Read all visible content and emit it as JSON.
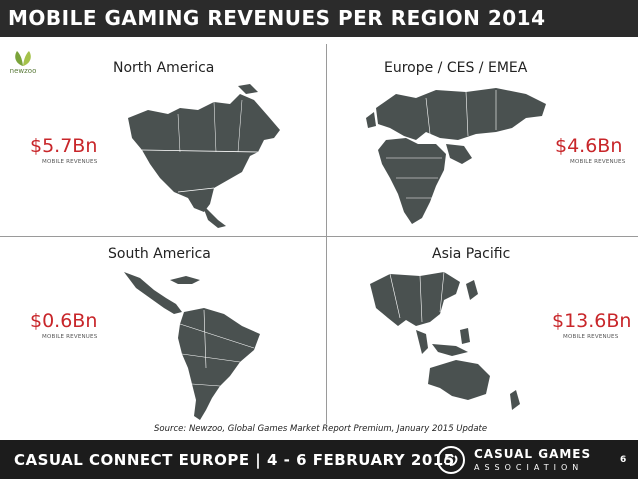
{
  "header": {
    "title": "MOBILE GAMING REVENUES PER REGION 2014"
  },
  "logo": {
    "text": "newzoo"
  },
  "regions": [
    {
      "name": "North America",
      "amount": "$5.7Bn",
      "label": "MOBILE REVENUES"
    },
    {
      "name": "Europe / CES / EMEA",
      "amount": "$4.6Bn",
      "label": "MOBILE REVENUES"
    },
    {
      "name": "South America",
      "amount": "$0.6Bn",
      "label": "MOBILE REVENUES"
    },
    {
      "name": "Asia Pacific",
      "amount": "$13.6Bn",
      "label": "MOBILE REVENUES"
    }
  ],
  "source": "Source: Newzoo, Global Games Market Report Premium, January 2015 Update",
  "footer": {
    "event": "CASUAL CONNECT EUROPE | 4 - 6 FEBRUARY 2015",
    "org_name": "CASUAL GAMES",
    "org_sub": "ASSOCIATION",
    "page": "6"
  },
  "colors": {
    "map": "#4a5150",
    "amount": "#c8262a",
    "bar": "#2b2b2b"
  }
}
